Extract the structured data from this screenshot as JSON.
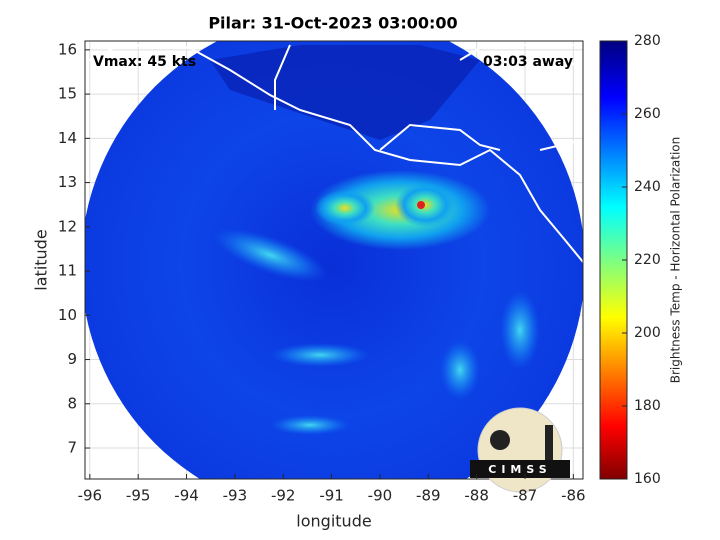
{
  "chart_data": {
    "type": "image",
    "title": "Pilar: 31-Oct-2023 03:00:00",
    "annotations": [
      "Vmax: 45 kts",
      "03:03 away"
    ],
    "xlabel": "longitude",
    "ylabel": "latitude",
    "xlim": [
      -96.1,
      -85.8
    ],
    "ylim": [
      6.3,
      16.2
    ],
    "xticks": [
      -96,
      -95,
      -94,
      -93,
      -92,
      -91,
      -90,
      -89,
      -88,
      -87,
      -86
    ],
    "yticks": [
      7,
      8,
      9,
      10,
      11,
      12,
      13,
      14,
      15,
      16
    ],
    "grid": true,
    "colorbar_label": "Brightness Temp - Horizontal Polarization",
    "clim": [
      160,
      280
    ],
    "cticks": [
      160,
      180,
      200,
      220,
      240,
      260,
      280
    ],
    "logo_text": "CIMSS"
  }
}
